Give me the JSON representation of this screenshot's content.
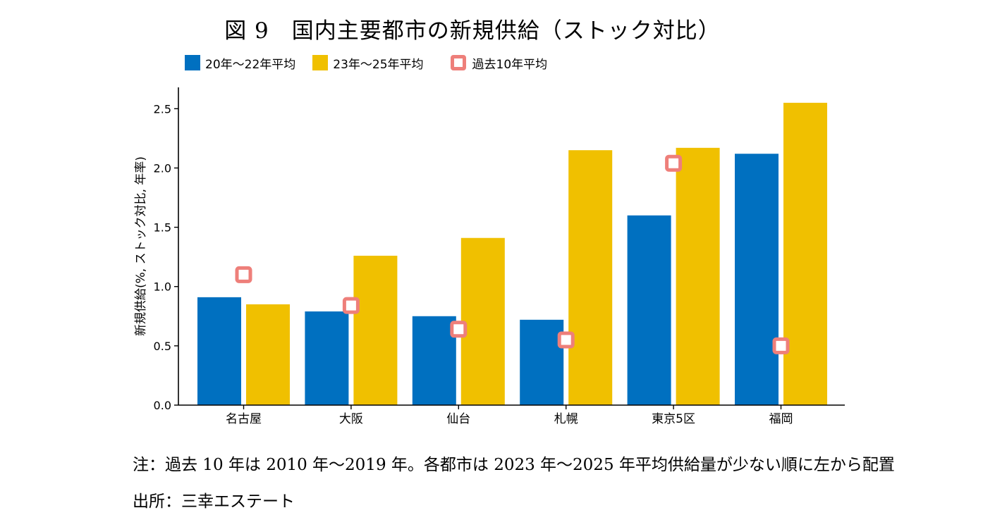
{
  "figure": {
    "title": "図 9　国内主要都市の新規供給（ストック対比）",
    "note": "注：過去 10 年は 2010 年〜2019 年。各都市は 2023 年〜2025 年平均供給量が少ない順に左から配置",
    "source": "出所：三幸エステート"
  },
  "colors": {
    "series1": "#0070c0",
    "series2": "#f0c000",
    "marker_border": "#ee7f7a",
    "marker_fill": "#ffffff",
    "axis": "#000000"
  },
  "chart_data": {
    "type": "bar",
    "title": "図 9　国内主要都市の新規供給（ストック対比）",
    "xlabel": "",
    "ylabel": "新規供給(%, ストック対比, 年率)",
    "categories": [
      "名古屋",
      "大阪",
      "仙台",
      "札幌",
      "東京5区",
      "福岡"
    ],
    "series": [
      {
        "name": "20年〜22年平均",
        "type": "bar",
        "color": "#0070c0",
        "values": [
          0.91,
          0.79,
          0.75,
          0.72,
          1.6,
          2.12
        ]
      },
      {
        "name": "23年〜25年平均",
        "type": "bar",
        "color": "#f0c000",
        "values": [
          0.85,
          1.26,
          1.41,
          2.15,
          2.17,
          2.55
        ]
      },
      {
        "name": "過去10年平均",
        "type": "marker",
        "color": "#ee7f7a",
        "values": [
          1.1,
          0.84,
          0.64,
          0.55,
          2.04,
          0.5
        ]
      }
    ],
    "ylim": [
      0,
      2.68
    ],
    "yticks": [
      0.0,
      0.5,
      1.0,
      1.5,
      2.0,
      2.5
    ],
    "ytick_labels": [
      "0.0",
      "0.5",
      "1.0",
      "1.5",
      "2.0",
      "2.5"
    ],
    "grid": false,
    "legend_position": "top-left"
  }
}
